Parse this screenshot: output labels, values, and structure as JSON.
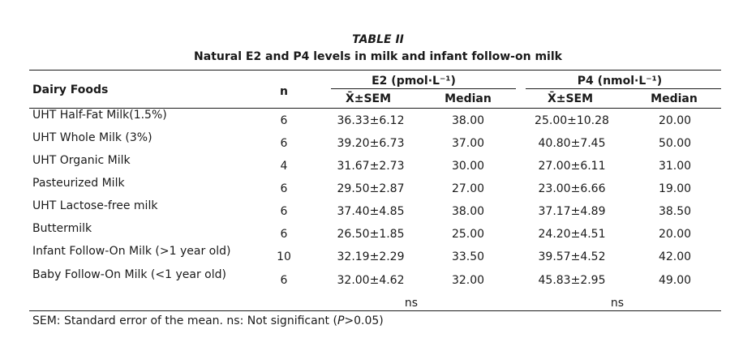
{
  "caption": {
    "label": "TABLE II",
    "title": "Natural E2 and P4 levels in milk and infant follow-on milk"
  },
  "header": {
    "food": "Dairy Foods",
    "n": "n",
    "e2": "E2 (pmol·L⁻¹)",
    "p4": "P4 (nmol·L⁻¹)",
    "mean_sem": "X̄±SEM",
    "median": "Median"
  },
  "rows": [
    {
      "food": "UHT Half-Fat Milk(1.5%)",
      "n": "6",
      "e2_mean": "36.33±6.12",
      "e2_median": "38.00",
      "p4_mean": "25.00±10.28",
      "p4_median": "20.00"
    },
    {
      "food": "UHT Whole Milk (3%)",
      "n": "6",
      "e2_mean": "39.20±6.73",
      "e2_median": "37.00",
      "p4_mean": "40.80±7.45",
      "p4_median": "50.00"
    },
    {
      "food": "UHT Organic Milk",
      "n": "4",
      "e2_mean": "31.67±2.73",
      "e2_median": "30.00",
      "p4_mean": "27.00±6.11",
      "p4_median": "31.00"
    },
    {
      "food": "Pasteurized Milk",
      "n": "6",
      "e2_mean": "29.50±2.87",
      "e2_median": "27.00",
      "p4_mean": "23.00±6.66",
      "p4_median": "19.00"
    },
    {
      "food": "UHT Lactose-free milk",
      "n": "6",
      "e2_mean": "37.40±4.85",
      "e2_median": "38.00",
      "p4_mean": "37.17±4.89",
      "p4_median": "38.50"
    },
    {
      "food": "Buttermilk",
      "n": "6",
      "e2_mean": "26.50±1.85",
      "e2_median": "25.00",
      "p4_mean": "24.20±4.51",
      "p4_median": "20.00"
    },
    {
      "food": "Infant Follow-On Milk (>1 year old)",
      "n": "10",
      "e2_mean": "32.19±2.29",
      "e2_median": "33.50",
      "p4_mean": "39.57±4.52",
      "p4_median": "42.00"
    },
    {
      "food": "Baby Follow-On Milk (<1 year old)",
      "n": "6",
      "e2_mean": "32.00±4.62",
      "e2_median": "32.00",
      "p4_mean": "45.83±2.95",
      "p4_median": "49.00"
    }
  ],
  "significance": {
    "e2": "ns",
    "p4": "ns"
  },
  "footnote": {
    "text_before": "SEM: Standard error of the mean. ns: Not significant (",
    "p_symbol": "P",
    "text_after": ">0.05)"
  }
}
